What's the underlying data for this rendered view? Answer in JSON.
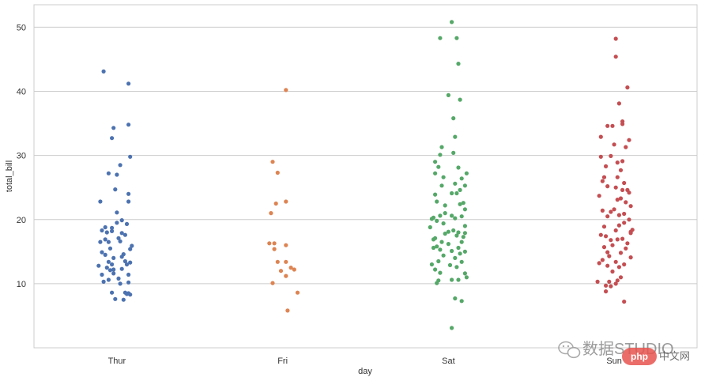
{
  "chart_data": {
    "type": "scatter",
    "subtype": "stripplot",
    "title": "",
    "xlabel": "day",
    "ylabel": "total_bill",
    "ylim": [
      0,
      53.5
    ],
    "yticks": [
      10,
      20,
      30,
      40,
      50
    ],
    "grid": "horizontal",
    "legend": "none",
    "categories": [
      "Thur",
      "Fri",
      "Sat",
      "Sun"
    ],
    "series": [
      {
        "category": "Thur",
        "color": "#4c72b0",
        "points": [
          [
            -0.08,
            43.1
          ],
          [
            0.07,
            41.2
          ],
          [
            0.07,
            34.8
          ],
          [
            -0.02,
            34.3
          ],
          [
            -0.03,
            32.7
          ],
          [
            0.08,
            29.8
          ],
          [
            0.02,
            28.5
          ],
          [
            -0.05,
            27.2
          ],
          [
            0.0,
            27.0
          ],
          [
            -0.1,
            22.8
          ],
          [
            -0.01,
            24.7
          ],
          [
            0.07,
            24.0
          ],
          [
            0.07,
            22.8
          ],
          [
            0.0,
            21.1
          ],
          [
            0.03,
            19.9
          ],
          [
            0.06,
            19.3
          ],
          [
            -0.07,
            18.8
          ],
          [
            -0.03,
            18.7
          ],
          [
            -0.09,
            18.3
          ],
          [
            -0.03,
            18.2
          ],
          [
            0.0,
            19.5
          ],
          [
            0.03,
            17.9
          ],
          [
            0.05,
            17.6
          ],
          [
            -0.07,
            16.9
          ],
          [
            0.01,
            17.1
          ],
          [
            -0.1,
            16.5
          ],
          [
            -0.05,
            16.5
          ],
          [
            0.02,
            16.6
          ],
          [
            0.09,
            15.9
          ],
          [
            0.08,
            15.4
          ],
          [
            -0.04,
            15.5
          ],
          [
            -0.09,
            14.9
          ],
          [
            -0.07,
            14.5
          ],
          [
            0.04,
            14.6
          ],
          [
            -0.02,
            14.0
          ],
          [
            -0.05,
            13.4
          ],
          [
            -0.03,
            13.0
          ],
          [
            0.05,
            13.5
          ],
          [
            0.08,
            13.3
          ],
          [
            0.06,
            13.0
          ],
          [
            -0.11,
            12.8
          ],
          [
            -0.06,
            12.5
          ],
          [
            -0.02,
            12.2
          ],
          [
            0.03,
            12.3
          ],
          [
            0.07,
            11.4
          ],
          [
            -0.09,
            11.4
          ],
          [
            -0.02,
            11.6
          ],
          [
            0.01,
            10.8
          ],
          [
            -0.05,
            10.6
          ],
          [
            0.07,
            10.2
          ],
          [
            0.02,
            10.0
          ],
          [
            -0.08,
            10.3
          ],
          [
            0.05,
            8.6
          ],
          [
            0.07,
            8.5
          ],
          [
            0.08,
            8.3
          ],
          [
            -0.01,
            7.6
          ],
          [
            0.04,
            7.5
          ],
          [
            -0.03,
            8.6
          ],
          [
            0.06,
            8.4
          ],
          [
            -0.04,
            12.1
          ],
          [
            0.03,
            14.2
          ],
          [
            -0.06,
            18.0
          ]
        ]
      },
      {
        "category": "Fri",
        "color": "#dd8452",
        "points": [
          [
            0.02,
            40.2
          ],
          [
            -0.06,
            29.0
          ],
          [
            -0.03,
            27.3
          ],
          [
            -0.04,
            22.5
          ],
          [
            0.02,
            22.8
          ],
          [
            -0.07,
            21.0
          ],
          [
            -0.08,
            16.3
          ],
          [
            -0.05,
            16.3
          ],
          [
            -0.05,
            15.4
          ],
          [
            0.02,
            16.0
          ],
          [
            -0.03,
            13.4
          ],
          [
            0.02,
            13.4
          ],
          [
            0.05,
            12.5
          ],
          [
            0.07,
            12.2
          ],
          [
            -0.01,
            12.0
          ],
          [
            0.02,
            11.2
          ],
          [
            -0.06,
            10.1
          ],
          [
            0.09,
            8.6
          ],
          [
            0.03,
            5.8
          ]
        ]
      },
      {
        "category": "Sat",
        "color": "#55a868",
        "points": [
          [
            0.02,
            50.8
          ],
          [
            -0.05,
            48.3
          ],
          [
            0.05,
            48.3
          ],
          [
            0.06,
            44.3
          ],
          [
            0.0,
            39.4
          ],
          [
            0.07,
            38.7
          ],
          [
            0.03,
            35.8
          ],
          [
            0.04,
            32.9
          ],
          [
            -0.04,
            31.3
          ],
          [
            -0.05,
            30.1
          ],
          [
            -0.08,
            29.0
          ],
          [
            -0.06,
            28.2
          ],
          [
            0.06,
            28.1
          ],
          [
            0.11,
            27.2
          ],
          [
            -0.08,
            27.2
          ],
          [
            0.08,
            26.4
          ],
          [
            -0.04,
            25.3
          ],
          [
            0.04,
            25.6
          ],
          [
            0.1,
            25.3
          ],
          [
            -0.08,
            23.9
          ],
          [
            0.02,
            24.1
          ],
          [
            0.05,
            24.1
          ],
          [
            -0.07,
            22.8
          ],
          [
            0.09,
            22.6
          ],
          [
            0.07,
            22.4
          ],
          [
            -0.02,
            21.0
          ],
          [
            0.1,
            21.6
          ],
          [
            0.02,
            20.6
          ],
          [
            -0.09,
            20.3
          ],
          [
            -0.05,
            20.6
          ],
          [
            -0.1,
            20.1
          ],
          [
            0.04,
            20.2
          ],
          [
            0.08,
            20.5
          ],
          [
            -0.07,
            19.8
          ],
          [
            -0.03,
            19.4
          ],
          [
            0.1,
            19.0
          ],
          [
            -0.11,
            18.8
          ],
          [
            0.03,
            18.3
          ],
          [
            0.06,
            18.0
          ],
          [
            0.1,
            17.9
          ],
          [
            -0.02,
            17.8
          ],
          [
            0.05,
            17.5
          ],
          [
            0.09,
            17.3
          ],
          [
            -0.08,
            17.1
          ],
          [
            -0.04,
            16.5
          ],
          [
            0.08,
            16.5
          ],
          [
            0.0,
            16.2
          ],
          [
            -0.07,
            15.8
          ],
          [
            -0.09,
            15.6
          ],
          [
            -0.05,
            15.3
          ],
          [
            0.02,
            15.1
          ],
          [
            0.06,
            15.6
          ],
          [
            0.1,
            15.0
          ],
          [
            -0.03,
            14.4
          ],
          [
            0.04,
            14.0
          ],
          [
            -0.06,
            13.5
          ],
          [
            0.08,
            13.4
          ],
          [
            -0.1,
            13.0
          ],
          [
            0.01,
            12.9
          ],
          [
            0.05,
            12.6
          ],
          [
            -0.08,
            12.2
          ],
          [
            -0.05,
            11.7
          ],
          [
            0.1,
            11.6
          ],
          [
            0.11,
            11.0
          ],
          [
            -0.06,
            10.5
          ],
          [
            0.02,
            10.6
          ],
          [
            0.06,
            10.6
          ],
          [
            -0.07,
            10.1
          ],
          [
            0.04,
            7.7
          ],
          [
            0.08,
            7.3
          ],
          [
            0.02,
            3.1
          ],
          [
            0.0,
            18.1
          ],
          [
            -0.02,
            22.2
          ],
          [
            0.07,
            24.6
          ],
          [
            -0.03,
            26.6
          ],
          [
            0.03,
            30.4
          ],
          [
            0.07,
            14.7
          ],
          [
            -0.09,
            16.9
          ]
        ]
      },
      {
        "category": "Sun",
        "color": "#c44e52",
        "points": [
          [
            0.01,
            48.2
          ],
          [
            0.01,
            45.4
          ],
          [
            0.08,
            40.6
          ],
          [
            0.03,
            38.1
          ],
          [
            0.05,
            35.3
          ],
          [
            0.05,
            34.9
          ],
          [
            -0.04,
            34.6
          ],
          [
            -0.01,
            34.6
          ],
          [
            -0.08,
            32.9
          ],
          [
            0.09,
            32.4
          ],
          [
            0.0,
            31.7
          ],
          [
            0.07,
            31.3
          ],
          [
            -0.02,
            29.9
          ],
          [
            -0.08,
            29.8
          ],
          [
            0.02,
            28.9
          ],
          [
            -0.05,
            28.3
          ],
          [
            0.04,
            27.7
          ],
          [
            0.02,
            26.6
          ],
          [
            -0.06,
            26.6
          ],
          [
            0.06,
            25.7
          ],
          [
            -0.04,
            25.2
          ],
          [
            0.01,
            25.0
          ],
          [
            0.05,
            24.6
          ],
          [
            0.08,
            24.6
          ],
          [
            0.09,
            24.2
          ],
          [
            -0.09,
            23.7
          ],
          [
            0.04,
            23.3
          ],
          [
            0.02,
            23.1
          ],
          [
            0.07,
            22.7
          ],
          [
            0.1,
            22.1
          ],
          [
            0.0,
            21.6
          ],
          [
            -0.07,
            21.4
          ],
          [
            -0.02,
            21.2
          ],
          [
            0.06,
            20.9
          ],
          [
            0.03,
            20.7
          ],
          [
            -0.04,
            20.5
          ],
          [
            0.09,
            20.0
          ],
          [
            0.06,
            19.5
          ],
          [
            0.03,
            19.1
          ],
          [
            -0.06,
            18.9
          ],
          [
            0.11,
            18.4
          ],
          [
            0.1,
            18.1
          ],
          [
            0.1,
            17.9
          ],
          [
            0.01,
            18.3
          ],
          [
            -0.08,
            17.6
          ],
          [
            -0.05,
            17.4
          ],
          [
            0.05,
            17.0
          ],
          [
            0.02,
            16.9
          ],
          [
            -0.02,
            16.8
          ],
          [
            0.08,
            16.3
          ],
          [
            -0.01,
            16.0
          ],
          [
            -0.06,
            15.7
          ],
          [
            0.07,
            15.5
          ],
          [
            -0.04,
            14.9
          ],
          [
            0.04,
            14.8
          ],
          [
            -0.03,
            14.3
          ],
          [
            0.1,
            14.1
          ],
          [
            -0.07,
            13.7
          ],
          [
            0.01,
            13.4
          ],
          [
            0.06,
            13.0
          ],
          [
            -0.09,
            13.2
          ],
          [
            -0.04,
            12.8
          ],
          [
            0.03,
            12.6
          ],
          [
            -0.01,
            11.9
          ],
          [
            -0.1,
            10.3
          ],
          [
            -0.03,
            10.3
          ],
          [
            0.02,
            10.5
          ],
          [
            -0.05,
            9.7
          ],
          [
            -0.02,
            9.6
          ],
          [
            0.01,
            10.0
          ],
          [
            -0.05,
            8.8
          ],
          [
            0.06,
            7.2
          ],
          [
            0.04,
            11.0
          ],
          [
            -0.07,
            26.0
          ],
          [
            0.05,
            29.1
          ]
        ]
      }
    ]
  },
  "watermark": {
    "text": "数据STUDIO",
    "pill": "php",
    "site": "中文网"
  }
}
